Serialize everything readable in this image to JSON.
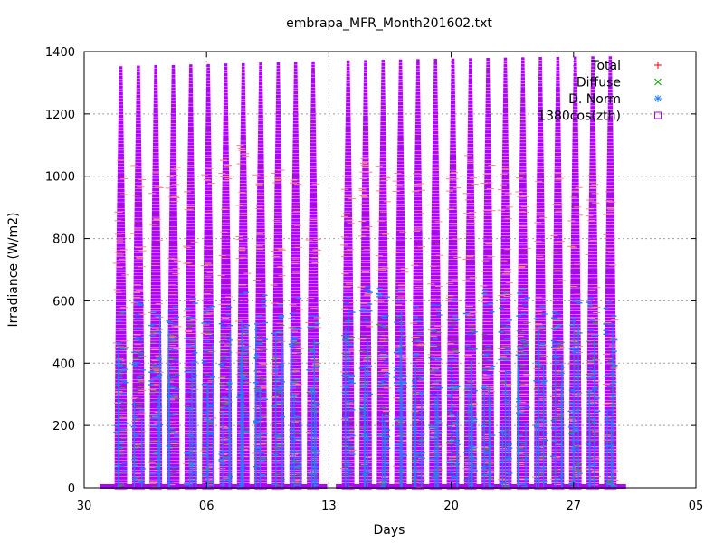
{
  "chart_data": {
    "type": "scatter",
    "title": "embrapa_MFR_Month201602.txt",
    "xlabel": "Days",
    "ylabel": "Irradiance (W/m2)",
    "x_ticks": [
      {
        "label": "30",
        "day": 0
      },
      {
        "label": "06",
        "day": 7
      },
      {
        "label": "13",
        "day": 14
      },
      {
        "label": "20",
        "day": 21
      },
      {
        "label": "27",
        "day": 28
      },
      {
        "label": "05",
        "day": 35
      }
    ],
    "xlim_days": [
      0,
      35
    ],
    "ylim": [
      0,
      1400
    ],
    "y_ticks": [
      0,
      200,
      400,
      600,
      800,
      1000,
      1200,
      1400
    ],
    "grid": true,
    "legend_position": "top-right",
    "series": [
      {
        "name": "Total",
        "marker": "+",
        "color": "#ff0000"
      },
      {
        "name": "Diffuse",
        "marker": "x",
        "color": "#00a000"
      },
      {
        "name": "D. Norm",
        "marker": "*",
        "color": "#2080ff"
      },
      {
        "name": "1380cos(zth)",
        "marker": "square",
        "color": "#b000ff"
      }
    ],
    "days": [
      2,
      3,
      4,
      5,
      6,
      7,
      8,
      9,
      10,
      11,
      12,
      13,
      15,
      16,
      17,
      18,
      19,
      20,
      21,
      22,
      23,
      24,
      25,
      26,
      27,
      28,
      29,
      30
    ],
    "peak_1380cos": [
      1348,
      1350,
      1352,
      1352,
      1354,
      1355,
      1357,
      1358,
      1360,
      1361,
      1362,
      1364,
      1367,
      1368,
      1369,
      1370,
      1371,
      1372,
      1373,
      1374,
      1375,
      1376,
      1377,
      1378,
      1378,
      1379,
      1380,
      1380
    ],
    "peak_total": [
      1080,
      1060,
      1050,
      1040,
      1060,
      1070,
      1090,
      1100,
      1020,
      1050,
      1000,
      1000,
      970,
      1060,
      1040,
      1030,
      1030,
      1080,
      1060,
      1070,
      1060,
      1040,
      1050,
      1040,
      1030,
      1000,
      1040,
      1020
    ],
    "peak_dnorm": [
      580,
      600,
      620,
      600,
      610,
      600,
      620,
      630,
      640,
      600,
      620,
      580,
      650,
      660,
      640,
      650,
      600,
      610,
      620,
      600,
      640,
      630,
      640,
      620,
      600,
      610,
      620,
      640
    ],
    "peak_diffuse": [
      560,
      540,
      520,
      530,
      560,
      550,
      530,
      520,
      540,
      560,
      520,
      540,
      500,
      520,
      540,
      560,
      520,
      530,
      540,
      560,
      550,
      540,
      530,
      520,
      540,
      560,
      550,
      530
    ]
  }
}
